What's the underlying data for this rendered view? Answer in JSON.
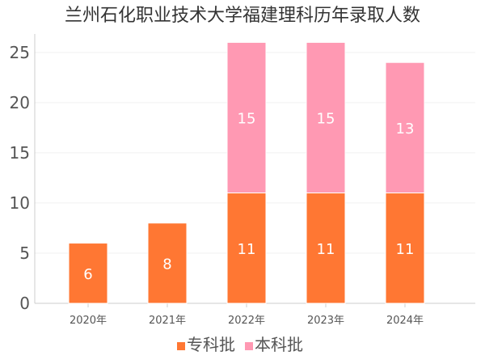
{
  "chart_data": {
    "type": "bar",
    "stacked": true,
    "title": "兰州石化职业技术大学福建理科历年录取人数",
    "categories": [
      "2020年",
      "2021年",
      "2022年",
      "2023年",
      "2024年"
    ],
    "series": [
      {
        "name": "专科批",
        "color": "#ff7733",
        "values": [
          6,
          8,
          11,
          11,
          11
        ]
      },
      {
        "name": "本科批",
        "color": "#ff99b3",
        "values": [
          0,
          0,
          15,
          15,
          13
        ]
      }
    ],
    "yticks": [
      0,
      5,
      10,
      15,
      20,
      25
    ],
    "ylim": [
      0,
      27
    ],
    "xlabel": "",
    "ylabel": "",
    "grid": true,
    "legend_position": "bottom"
  }
}
